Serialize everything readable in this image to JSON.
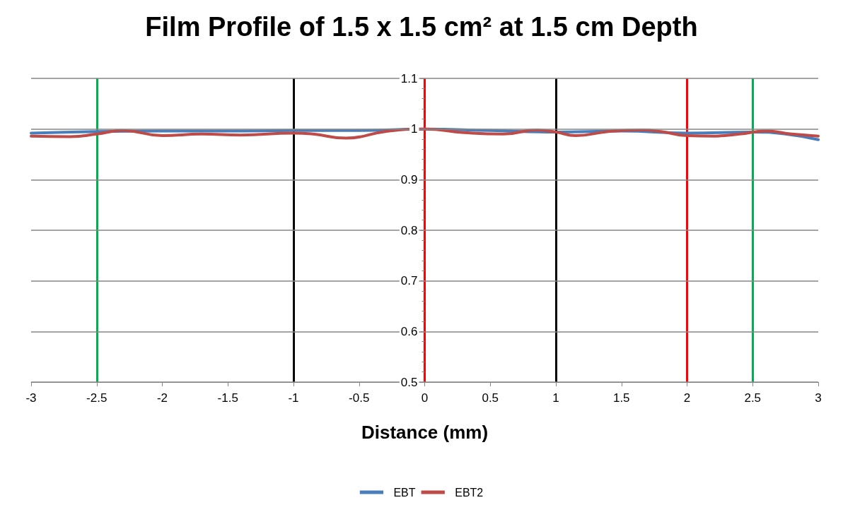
{
  "chart_data": {
    "type": "line",
    "title": "Film Profile of 1.5 x 1.5 cm² at 1.5 cm Depth",
    "xlabel": "Distance (mm)",
    "xlim": [
      -3,
      3
    ],
    "xticks": [
      -3,
      -2.5,
      -2,
      -1.5,
      -1,
      -0.5,
      0,
      0.5,
      1,
      1.5,
      2,
      2.5,
      3
    ],
    "ylim": [
      0.5,
      1.1
    ],
    "yticks": [
      0.5,
      0.6,
      0.7,
      0.8,
      0.9,
      1,
      1.1
    ],
    "grid": "y",
    "legend": "bottom",
    "marker": "none",
    "line_style": "solid",
    "series": [
      {
        "name": "EBT",
        "color": "#4a7ebb",
        "x": [
          -3,
          -2.5,
          -2,
          -1.5,
          -1,
          -0.5,
          0,
          0.5,
          1,
          1.5,
          2,
          2.5,
          2.75,
          3
        ],
        "values": [
          0.992,
          0.995,
          0.996,
          0.996,
          0.997,
          0.997,
          1.0,
          0.997,
          0.994,
          0.996,
          0.992,
          0.994,
          0.99,
          0.979
        ]
      },
      {
        "name": "EBT2",
        "color": "#be4b48",
        "x": [
          -3,
          -2.7,
          -2.5,
          -2.3,
          -2.0,
          -1.7,
          -1.4,
          -1.0,
          -0.85,
          -0.6,
          -0.3,
          0,
          0.3,
          0.6,
          0.85,
          1.0,
          1.15,
          1.4,
          1.65,
          1.8,
          2.0,
          2.2,
          2.4,
          2.6,
          2.8,
          3.0
        ],
        "values": [
          0.986,
          0.985,
          0.99,
          0.997,
          0.987,
          0.99,
          0.988,
          0.992,
          0.99,
          0.982,
          0.995,
          1.0,
          0.993,
          0.99,
          0.998,
          0.994,
          0.987,
          0.995,
          0.998,
          0.995,
          0.987,
          0.986,
          0.99,
          0.996,
          0.99,
          0.986
        ]
      }
    ],
    "ref_lines": [
      {
        "axis": "x",
        "value": -2.5,
        "color": "#00b050"
      },
      {
        "axis": "x",
        "value": -1,
        "color": "#000000"
      },
      {
        "axis": "x",
        "value": 0,
        "color": "#ff0000"
      },
      {
        "axis": "x",
        "value": 1,
        "color": "#000000"
      },
      {
        "axis": "x",
        "value": 2,
        "color": "#ff0000"
      },
      {
        "axis": "x",
        "value": 2.5,
        "color": "#00b050"
      }
    ]
  }
}
